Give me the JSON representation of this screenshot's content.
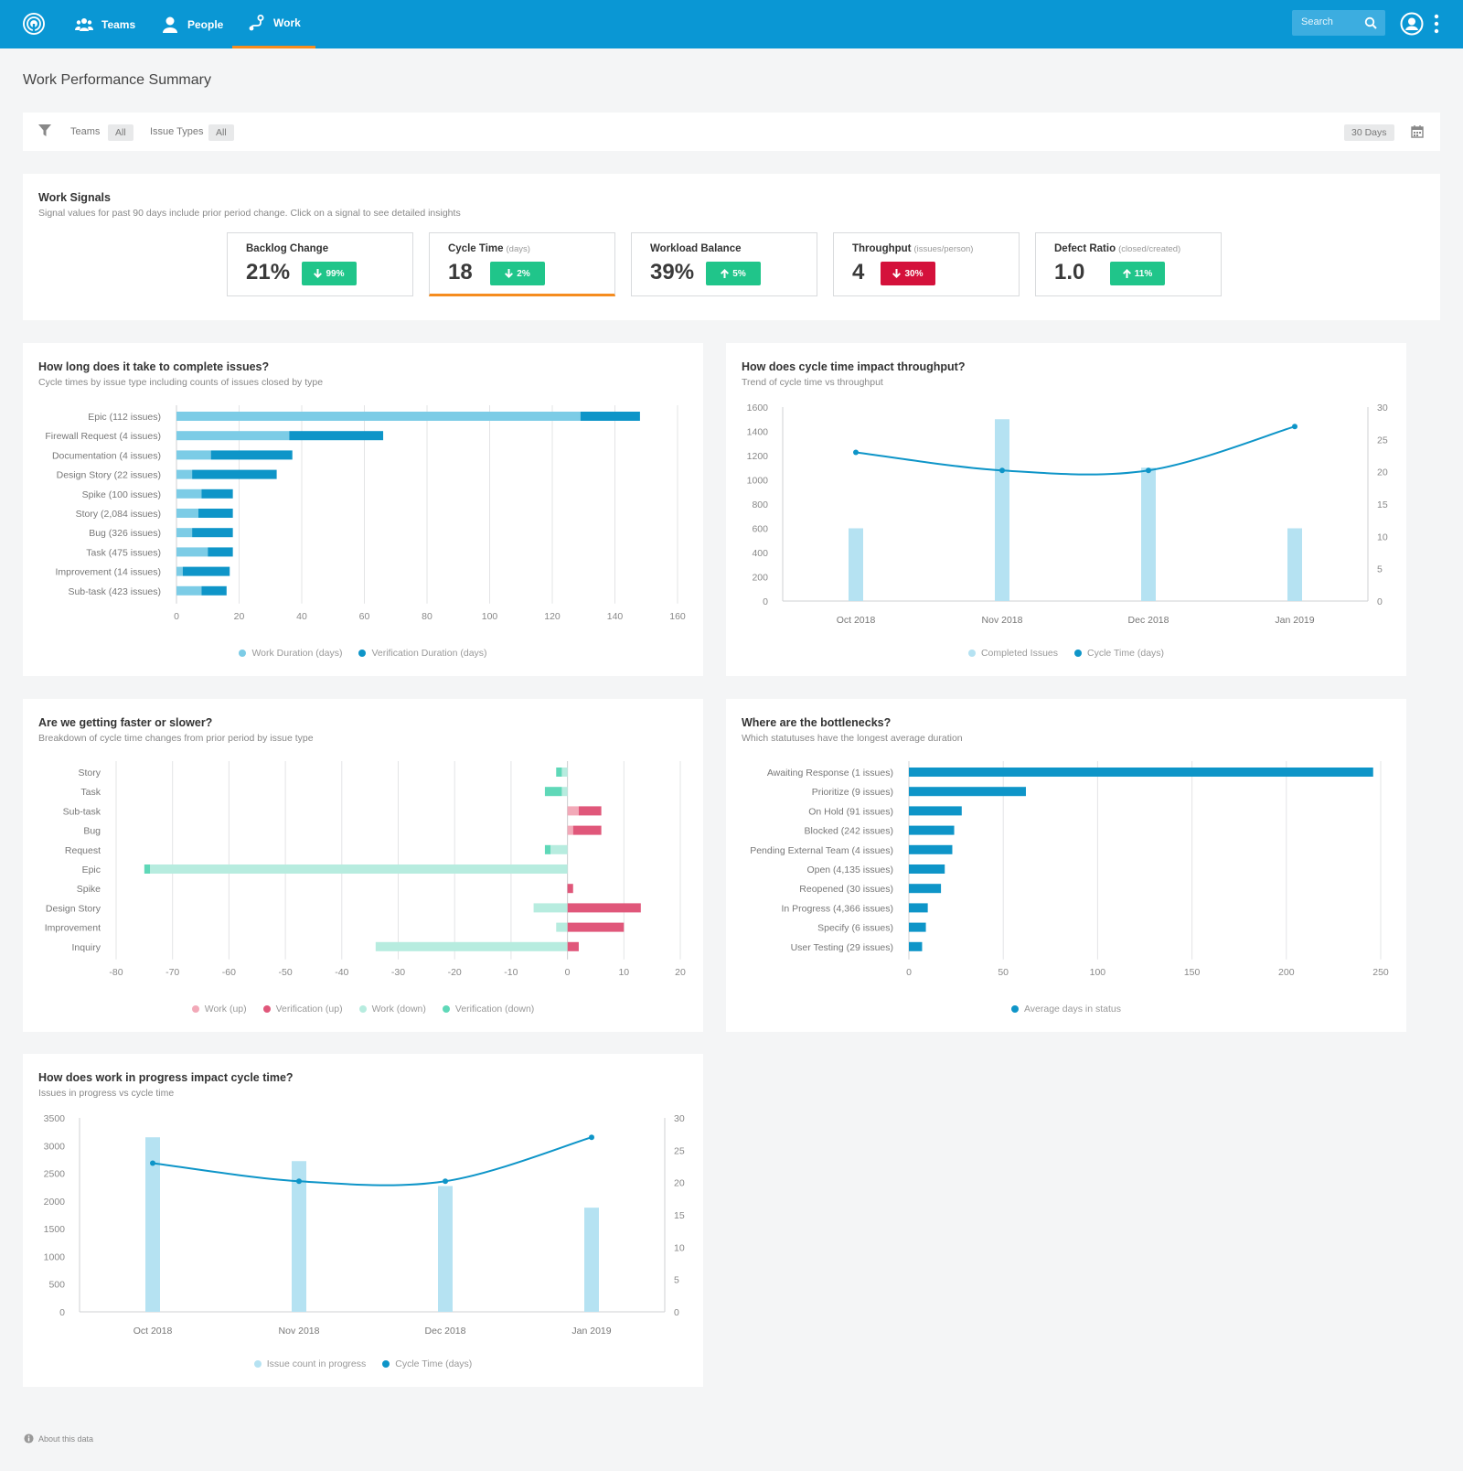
{
  "nav": {
    "items": [
      {
        "label": "Teams",
        "icon": "users-icon"
      },
      {
        "label": "People",
        "icon": "person-icon"
      },
      {
        "label": "Work",
        "icon": "work-icon"
      }
    ],
    "search_placeholder": "Search"
  },
  "page_title": "Work Performance Summary",
  "filters": {
    "teams_label": "Teams",
    "teams_value": "All",
    "issue_types_label": "Issue Types",
    "issue_types_value": "All",
    "range": "30 Days"
  },
  "signals": {
    "title": "Work Signals",
    "subtitle": "Signal values for past 90 days include prior period change. Click on a signal to see detailed insights",
    "items": [
      {
        "title": "Backlog Change",
        "unit": "",
        "value": "21%",
        "change": "99%",
        "direction": "down",
        "color": "#20c58a"
      },
      {
        "title": "Cycle Time",
        "unit": "(days)",
        "value": "18",
        "change": "2%",
        "direction": "down",
        "color": "#20c58a"
      },
      {
        "title": "Workload Balance",
        "unit": "",
        "value": "39%",
        "change": "5%",
        "direction": "up",
        "color": "#20c58a"
      },
      {
        "title": "Throughput",
        "unit": "(issues/person)",
        "value": "4",
        "change": "30%",
        "direction": "down",
        "color": "#d4113b"
      },
      {
        "title": "Defect Ratio",
        "unit": "(closed/created)",
        "value": "1.0",
        "change": "11%",
        "direction": "up",
        "color": "#20c58a"
      }
    ]
  },
  "colors": {
    "brand": "#0a97d4",
    "accent": "#f58c1f",
    "light_blue": "#7ccce6",
    "dark_blue": "#0e95c8",
    "pale_blue": "#b5e2f2",
    "pink_light": "#f2a9b8",
    "pink": "#e0577a",
    "mint_light": "#b7ecdf",
    "mint": "#5fd8b8"
  },
  "charts": {
    "complete": {
      "title": "How long does it take to complete issues?",
      "subtitle": "Cycle times by issue type including counts of issues closed by type"
    },
    "throughput": {
      "title": "How does cycle time impact throughput?",
      "subtitle": "Trend of cycle time vs throughput"
    },
    "faster": {
      "title": "Are we getting faster or slower?",
      "subtitle": "Breakdown of cycle time changes from prior period by issue type"
    },
    "bottlenecks": {
      "title": "Where are the bottlenecks?",
      "subtitle": "Which statutuses have the longest average duration"
    },
    "wip": {
      "title": "How does work in progress impact cycle time?",
      "subtitle": "Issues in progress vs cycle time"
    }
  },
  "chart_data": [
    {
      "id": "complete",
      "type": "bar",
      "orientation": "horizontal",
      "stacked": true,
      "categories": [
        "Epic (112 issues)",
        "Firewall Request (4 issues)",
        "Documentation (4 issues)",
        "Design Story (22 issues)",
        "Spike (100 issues)",
        "Story (2,084 issues)",
        "Bug (326 issues)",
        "Task (475 issues)",
        "Improvement (14 issues)",
        "Sub-task (423 issues)"
      ],
      "series": [
        {
          "name": "Work Duration (days)",
          "values": [
            129,
            36,
            11,
            5,
            8,
            7,
            5,
            10,
            2,
            8
          ]
        },
        {
          "name": "Verification Duration (days)",
          "values": [
            19,
            30,
            26,
            27,
            10,
            11,
            13,
            8,
            15,
            8
          ]
        }
      ],
      "xlim": [
        0,
        160
      ],
      "xticks": [
        0,
        20,
        40,
        60,
        80,
        100,
        120,
        140,
        160
      ],
      "grid": true,
      "legend": "bottom"
    },
    {
      "id": "throughput",
      "type": "bar+line",
      "categories": [
        "Oct 2018",
        "Nov 2018",
        "Dec 2018",
        "Jan 2019"
      ],
      "series": [
        {
          "name": "Completed Issues",
          "type": "bar",
          "axis": "left",
          "values": [
            600,
            1500,
            1100,
            600
          ]
        },
        {
          "name": "Cycle Time (days)",
          "type": "line",
          "axis": "right",
          "values": [
            23,
            20.2,
            20.2,
            27
          ]
        }
      ],
      "ylim_left": [
        0,
        1600
      ],
      "yticks_left": [
        0,
        200,
        400,
        600,
        800,
        1000,
        1200,
        1400,
        1600
      ],
      "ylim_right": [
        0,
        30
      ],
      "yticks_right": [
        0,
        5,
        10,
        15,
        20,
        25,
        30
      ],
      "legend": "bottom"
    },
    {
      "id": "faster",
      "type": "bar",
      "orientation": "horizontal",
      "diverging": true,
      "categories": [
        "Story",
        "Task",
        "Sub-task",
        "Bug",
        "Request",
        "Epic",
        "Spike",
        "Design Story",
        "Improvement",
        "Inquiry"
      ],
      "series": [
        {
          "name": "Work (up)",
          "values": [
            0,
            0,
            2,
            1,
            0,
            0,
            0,
            0,
            0,
            0
          ]
        },
        {
          "name": "Verification (up)",
          "values": [
            0,
            0,
            4,
            5,
            0,
            0,
            1,
            13,
            10,
            2
          ]
        },
        {
          "name": "Work (down)",
          "values": [
            -1,
            -1,
            0,
            0,
            -3,
            -74,
            0,
            -6,
            -2,
            -34
          ]
        },
        {
          "name": "Verification (down)",
          "values": [
            -1,
            -3,
            0,
            0,
            -1,
            -1,
            0,
            0,
            0,
            0
          ]
        }
      ],
      "xlim": [
        -80,
        20
      ],
      "xticks": [
        -80,
        -70,
        -60,
        -50,
        -40,
        -30,
        -20,
        -10,
        0,
        10,
        20
      ],
      "grid": true,
      "legend": "bottom"
    },
    {
      "id": "bottlenecks",
      "type": "bar",
      "orientation": "horizontal",
      "categories": [
        "Awaiting Response (1 issues)",
        "Prioritize (9 issues)",
        "On Hold (91 issues)",
        "Blocked (242 issues)",
        "Pending External Team (4 issues)",
        "Open (4,135 issues)",
        "Reopened (30 issues)",
        "In Progress (4,366 issues)",
        "Specify (6 issues)",
        "User Testing (29 issues)"
      ],
      "series": [
        {
          "name": "Average days in status",
          "values": [
            246,
            62,
            28,
            24,
            23,
            19,
            17,
            10,
            9,
            7
          ]
        }
      ],
      "xlim": [
        0,
        250
      ],
      "xticks": [
        0,
        50,
        100,
        150,
        200,
        250
      ],
      "grid": true,
      "legend": "bottom"
    },
    {
      "id": "wip",
      "type": "bar+line",
      "categories": [
        "Oct 2018",
        "Nov 2018",
        "Dec 2018",
        "Jan 2019"
      ],
      "series": [
        {
          "name": "Issue count in progress",
          "type": "bar",
          "axis": "left",
          "values": [
            3150,
            2720,
            2270,
            1880
          ]
        },
        {
          "name": "Cycle Time (days)",
          "type": "line",
          "axis": "right",
          "values": [
            23,
            20.2,
            20.2,
            27
          ]
        }
      ],
      "ylim_left": [
        0,
        3500
      ],
      "yticks_left": [
        0,
        500,
        1000,
        1500,
        2000,
        2500,
        3000,
        3500
      ],
      "ylim_right": [
        0,
        30
      ],
      "yticks_right": [
        0,
        5,
        10,
        15,
        20,
        25,
        30
      ],
      "legend": "bottom"
    }
  ],
  "footer": {
    "about": "About this data"
  }
}
